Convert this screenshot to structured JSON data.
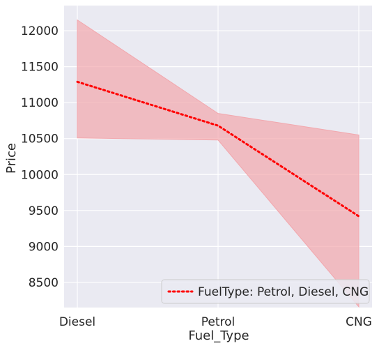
{
  "chart_data": {
    "type": "line",
    "title": "",
    "xlabel": "Fuel_Type",
    "ylabel": "Price",
    "categories": [
      "Diesel",
      "Petrol",
      "CNG"
    ],
    "ylim": [
      8150,
      12350
    ],
    "yticks": [
      8500,
      9000,
      9500,
      10000,
      10500,
      11000,
      11500,
      12000
    ],
    "ytick_labels": [
      "8500",
      "9000",
      "9500",
      "10000",
      "10500",
      "11000",
      "11500",
      "12000"
    ],
    "grid": true,
    "legend_position": "lower-right",
    "series": [
      {
        "name": "FuelType: Petrol, Diesel, CNG",
        "values": [
          11290,
          10680,
          9420
        ],
        "ci_lower": [
          10510,
          10480,
          8160
        ],
        "ci_upper": [
          12150,
          10850,
          10550
        ],
        "color": "#ff0000",
        "band_color": "#f2a7ad",
        "line_style": "dotted"
      }
    ]
  },
  "colors": {
    "background": "#eaeaf2",
    "grid": "#ffffff"
  }
}
